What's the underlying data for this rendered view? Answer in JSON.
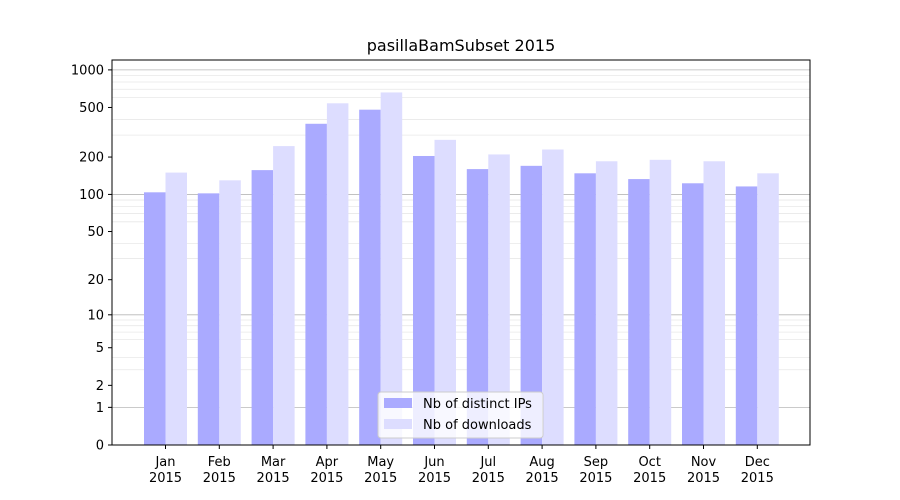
{
  "chart_data": {
    "type": "bar",
    "title": "pasillaBamSubset 2015",
    "xlabel": "",
    "ylabel": "",
    "yscale": "log(1+y)",
    "ylim": [
      0,
      1200
    ],
    "yticks": [
      "0",
      "1",
      "2",
      "5",
      "10",
      "20",
      "50",
      "100",
      "200",
      "500",
      "1000"
    ],
    "grid": "horizontal",
    "legend_position": "bottom-center",
    "categories": [
      "Jan\n2015",
      "Feb\n2015",
      "Mar\n2015",
      "Apr\n2015",
      "May\n2015",
      "Jun\n2015",
      "Jul\n2015",
      "Aug\n2015",
      "Sep\n2015",
      "Oct\n2015",
      "Nov\n2015",
      "Dec\n2015"
    ],
    "series": [
      {
        "name": "Nb of distinct IPs",
        "color": "#aaaaff",
        "values": [
          104,
          102,
          157,
          370,
          480,
          204,
          160,
          170,
          148,
          133,
          123,
          116
        ]
      },
      {
        "name": "Nb of downloads",
        "color": "#ddddff",
        "values": [
          150,
          130,
          245,
          540,
          660,
          275,
          210,
          230,
          185,
          190,
          185,
          148
        ]
      }
    ]
  }
}
